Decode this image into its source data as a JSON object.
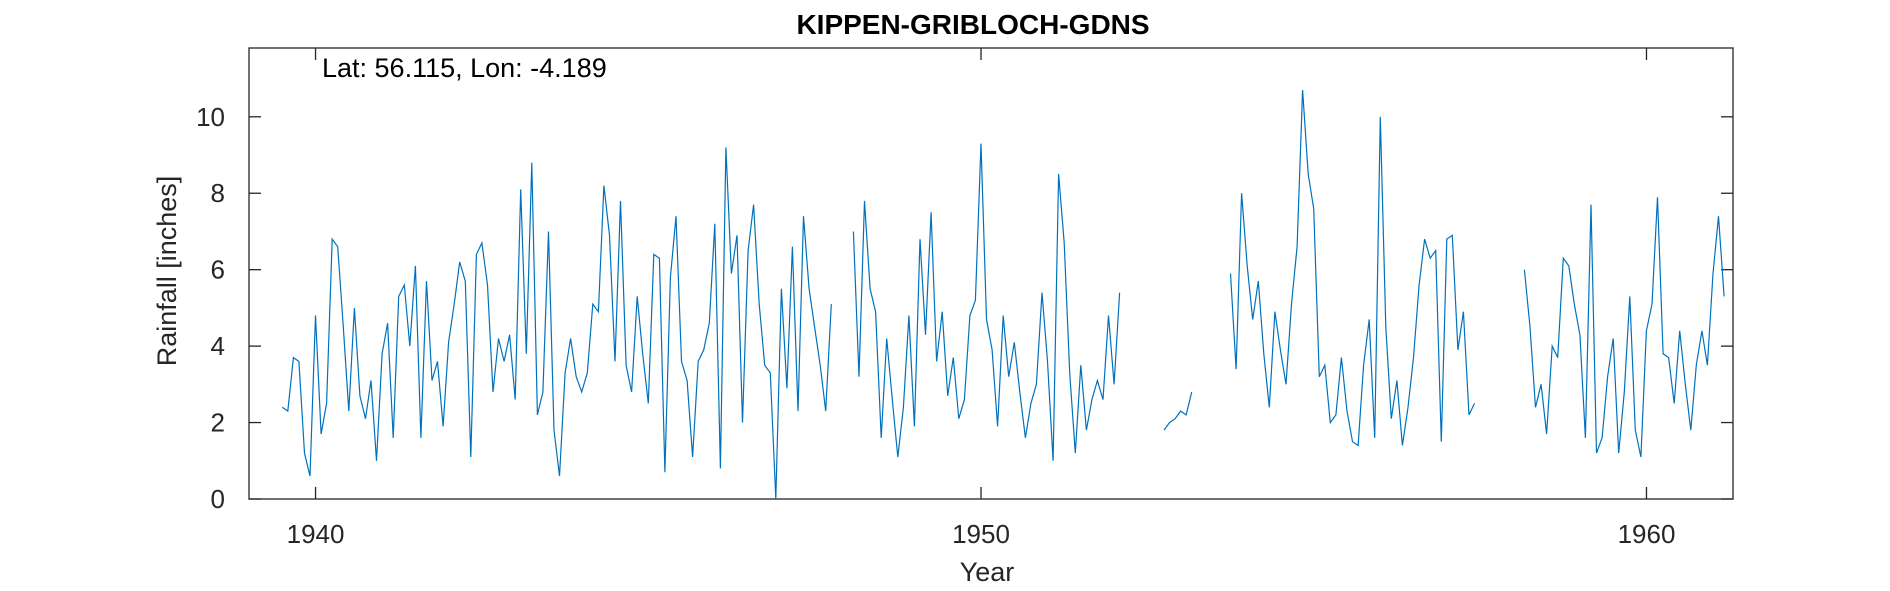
{
  "chart_data": {
    "type": "line",
    "title": "KIPPEN-GRIBLOCH-GDNS",
    "xlabel": "Year",
    "ylabel": "Rainfall [inches]",
    "annotation": "Lat: 56.115, Lon: -4.189",
    "xlim": [
      1939,
      1961.3
    ],
    "ylim": [
      0,
      11.8
    ],
    "xticks": [
      1940,
      1950,
      1960
    ],
    "yticks": [
      0,
      2,
      4,
      6,
      8,
      10
    ],
    "grid": false,
    "legend": "none",
    "series": [
      {
        "color": "#0072BD",
        "start_year": 1939.5,
        "step_years": 0.08333,
        "values": [
          2.4,
          2.3,
          3.7,
          3.6,
          1.2,
          0.6,
          4.8,
          1.7,
          2.5,
          6.8,
          6.6,
          4.5,
          2.3,
          5.0,
          2.7,
          2.1,
          3.1,
          1.0,
          3.8,
          4.6,
          1.6,
          5.3,
          5.6,
          4.0,
          6.1,
          1.6,
          5.7,
          3.1,
          3.6,
          1.9,
          4.1,
          5.1,
          6.2,
          5.7,
          1.1,
          6.4,
          6.7,
          5.6,
          2.8,
          4.2,
          3.6,
          4.3,
          2.6,
          8.1,
          3.8,
          8.8,
          2.2,
          2.8,
          7.0,
          1.8,
          0.6,
          3.3,
          4.2,
          3.2,
          2.8,
          3.3,
          5.1,
          4.9,
          8.2,
          6.9,
          3.6,
          7.8,
          3.5,
          2.8,
          5.3,
          3.8,
          2.5,
          6.4,
          6.3,
          0.7,
          5.8,
          7.4,
          3.6,
          3.1,
          1.1,
          3.6,
          3.9,
          4.6,
          7.2,
          0.8,
          9.2,
          5.9,
          6.9,
          2.0,
          6.5,
          7.7,
          5.1,
          3.5,
          3.3,
          0.0,
          5.5,
          2.9,
          6.6,
          2.3,
          7.4,
          5.5,
          4.5,
          3.5,
          2.3,
          5.1,
          null,
          null,
          null,
          7.0,
          3.2,
          7.8,
          5.5,
          4.9,
          1.6,
          4.2,
          2.6,
          1.1,
          2.4,
          4.8,
          1.9,
          6.8,
          4.3,
          7.5,
          3.6,
          4.9,
          2.7,
          3.7,
          2.1,
          2.6,
          4.8,
          5.2,
          9.3,
          4.7,
          3.9,
          1.9,
          4.8,
          3.2,
          4.1,
          2.8,
          1.6,
          2.5,
          3.0,
          5.4,
          3.6,
          1.0,
          8.5,
          6.7,
          3.3,
          1.2,
          3.5,
          1.8,
          2.6,
          3.1,
          2.6,
          4.8,
          3.0,
          5.4,
          null,
          null,
          null,
          null,
          null,
          null,
          null,
          1.8,
          2.0,
          2.1,
          2.3,
          2.2,
          2.8,
          null,
          null,
          null,
          null,
          null,
          null,
          5.9,
          3.4,
          8.0,
          6.1,
          4.7,
          5.7,
          3.8,
          2.4,
          4.9,
          3.9,
          3.0,
          5.1,
          6.6,
          10.7,
          8.5,
          7.6,
          3.2,
          3.5,
          2.0,
          2.2,
          3.7,
          2.3,
          1.5,
          1.4,
          3.5,
          4.7,
          1.6,
          10.0,
          4.5,
          2.1,
          3.1,
          1.4,
          2.4,
          3.7,
          5.6,
          6.8,
          6.3,
          6.5,
          1.5,
          6.8,
          6.9,
          3.9,
          4.9,
          2.2,
          2.5,
          null,
          null,
          null,
          null,
          null,
          null,
          null,
          null,
          6.0,
          4.5,
          2.4,
          3.0,
          1.7,
          4.0,
          3.7,
          6.3,
          6.1,
          5.1,
          4.3,
          1.6,
          7.7,
          1.2,
          1.6,
          3.2,
          4.2,
          1.2,
          2.8,
          5.3,
          1.8,
          1.1,
          4.4,
          5.1,
          7.9,
          3.8,
          3.7,
          2.5,
          4.4,
          3.0,
          1.8,
          3.5,
          4.4,
          3.5,
          5.9,
          7.4,
          5.3
        ]
      }
    ]
  }
}
